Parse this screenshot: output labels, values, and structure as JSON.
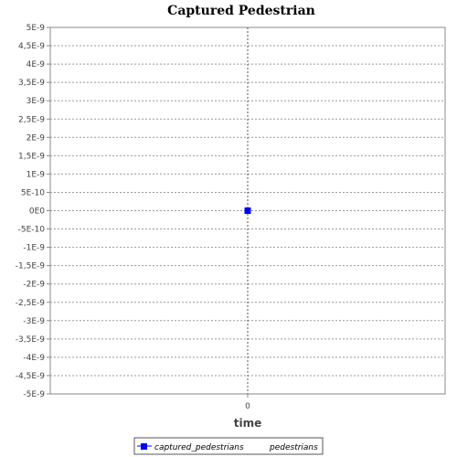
{
  "chart_data": {
    "type": "scatter",
    "title": "Captured Pedestrian",
    "xlabel": "time",
    "ylabel": "",
    "x_ticks": [
      "0"
    ],
    "y_ticks": [
      "5E-9",
      "4,5E-9",
      "4E-9",
      "3,5E-9",
      "3E-9",
      "2,5E-9",
      "2E-9",
      "1,5E-9",
      "1E-9",
      "5E-10",
      "0E0",
      "-5E-10",
      "-1E-9",
      "-1,5E-9",
      "-2E-9",
      "-2,5E-9",
      "-3E-9",
      "-3,5E-9",
      "-4E-9",
      "-4,5E-9",
      "-5E-9"
    ],
    "ylim": [
      -5e-09,
      5e-09
    ],
    "xlim": [
      -1,
      1
    ],
    "grid": true,
    "legend_position": "bottom-center",
    "series": [
      {
        "name": "captured_pedestrians",
        "unit": "pedestrians",
        "color": "#0000ff",
        "x": [
          0
        ],
        "y": [
          0
        ]
      }
    ]
  }
}
